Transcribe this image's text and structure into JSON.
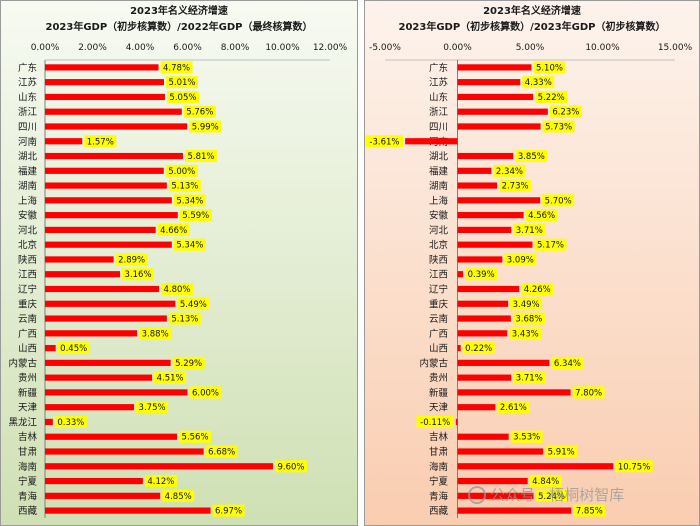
{
  "chart_data": [
    {
      "type": "bar",
      "orientation": "horizontal",
      "title": "2023年名义经济增速",
      "subtitle": "2023年GDP（初步核算数）/2022年GDP（最终核算数）",
      "tick_labels": [
        "0.00%",
        "2.00%",
        "4.00%",
        "6.00%",
        "8.00%",
        "10.00%",
        "12.00%"
      ],
      "xlim": [
        0,
        12
      ],
      "axis_position": "top",
      "legend": "none",
      "categories": [
        "广东",
        "江苏",
        "山东",
        "浙江",
        "四川",
        "河南",
        "湖北",
        "福建",
        "湖南",
        "上海",
        "安徽",
        "河北",
        "北京",
        "陕西",
        "江西",
        "辽宁",
        "重庆",
        "云南",
        "广西",
        "山西",
        "内蒙古",
        "贵州",
        "新疆",
        "天津",
        "黑龙江",
        "吉林",
        "甘肃",
        "海南",
        "宁夏",
        "青海",
        "西藏"
      ],
      "values": [
        4.78,
        5.01,
        5.05,
        5.76,
        5.99,
        1.57,
        5.81,
        5.0,
        5.13,
        5.34,
        5.59,
        4.66,
        5.34,
        2.89,
        3.16,
        4.8,
        5.49,
        5.13,
        3.88,
        0.45,
        5.29,
        4.51,
        6.0,
        3.75,
        0.33,
        5.56,
        6.68,
        9.6,
        4.12,
        4.85,
        6.97
      ],
      "data_labels": [
        "4.78%",
        "5.01%",
        "5.05%",
        "5.76%",
        "5.99%",
        "1.57%",
        "5.81%",
        "5.00%",
        "5.13%",
        "5.34%",
        "5.59%",
        "4.66%",
        "5.34%",
        "2.89%",
        "3.16%",
        "4.80%",
        "5.49%",
        "5.13%",
        "3.88%",
        "0.45%",
        "5.29%",
        "4.51%",
        "6.00%",
        "3.75%",
        "0.33%",
        "5.56%",
        "6.68%",
        "9.60%",
        "4.12%",
        "4.85%",
        "6.97%"
      ],
      "colors": {
        "bar": "#ff0000",
        "label_bg": "#ffff00",
        "bg_top": "#f7faf2",
        "bg_bottom": "#cfe0b4",
        "border": "#9a9a9a"
      }
    },
    {
      "type": "bar",
      "orientation": "horizontal",
      "title": "2023年名义经济增速",
      "subtitle": "2023年GDP（初步核算数）/2023年GDP（初步核算数）",
      "tick_labels": [
        "-5.00%",
        "0.00%",
        "5.00%",
        "10.00%",
        "15.00%"
      ],
      "xlim": [
        -5,
        15
      ],
      "axis_position": "top",
      "legend": "none",
      "categories": [
        "广东",
        "江苏",
        "山东",
        "浙江",
        "四川",
        "河南",
        "湖北",
        "福建",
        "湖南",
        "上海",
        "安徽",
        "河北",
        "北京",
        "陕西",
        "江西",
        "辽宁",
        "重庆",
        "云南",
        "广西",
        "山西",
        "内蒙古",
        "贵州",
        "新疆",
        "天津",
        "黑龙江",
        "吉林",
        "甘肃",
        "海南",
        "宁夏",
        "青海",
        "西藏"
      ],
      "values": [
        5.1,
        4.33,
        5.22,
        6.23,
        5.73,
        -3.61,
        3.85,
        2.34,
        2.73,
        5.7,
        4.56,
        3.71,
        5.17,
        3.09,
        0.39,
        4.26,
        3.49,
        3.68,
        3.43,
        0.22,
        6.34,
        3.71,
        7.8,
        2.61,
        -0.11,
        3.53,
        5.91,
        10.75,
        4.84,
        5.24,
        7.85
      ],
      "data_labels": [
        "5.10%",
        "4.33%",
        "5.22%",
        "6.23%",
        "5.73%",
        "-3.61%",
        "3.85%",
        "2.34%",
        "2.73%",
        "5.70%",
        "4.56%",
        "3.71%",
        "5.17%",
        "3.09%",
        "0.39%",
        "4.26%",
        "3.49%",
        "3.68%",
        "3.43%",
        "0.22%",
        "6.34%",
        "3.71%",
        "7.80%",
        "2.61%",
        "-0.11%",
        "3.53%",
        "5.91%",
        "10.75%",
        "4.84%",
        "5.24%",
        "7.85%"
      ],
      "colors": {
        "bar": "#ff0000",
        "label_bg": "#ffff00",
        "bg_top": "#fdf3ec",
        "bg_bottom": "#f9cdb0",
        "border": "#9a9a9a"
      }
    }
  ],
  "watermark": {
    "text": "公众号 · 梧桐树智库",
    "icon": "wechat-logo-icon"
  }
}
